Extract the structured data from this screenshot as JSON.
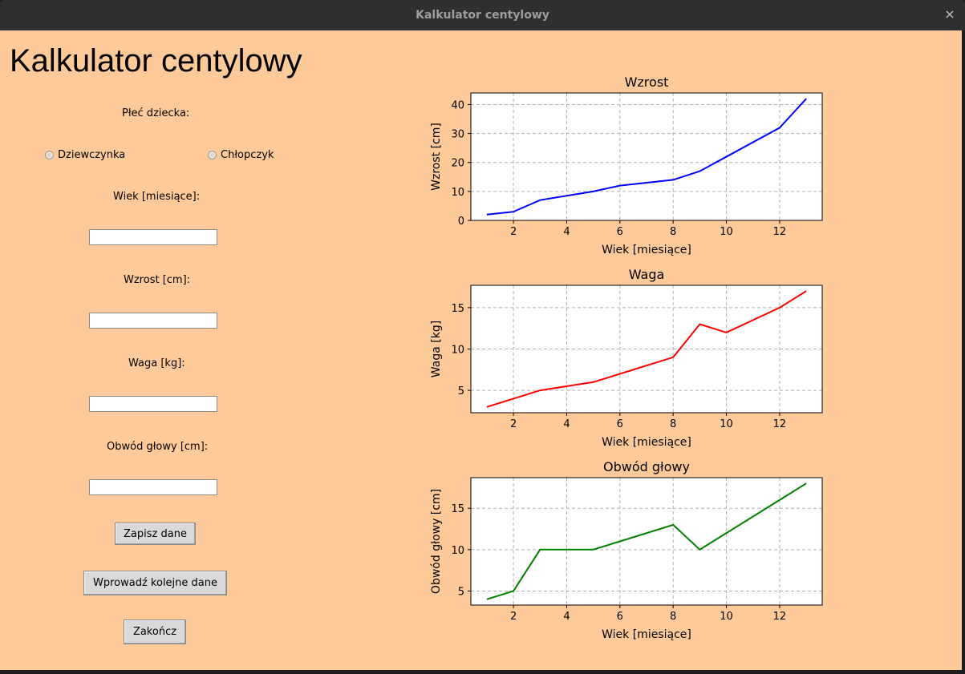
{
  "window": {
    "title": "Kalkulator centylowy",
    "close_glyph": "×"
  },
  "form": {
    "heading": "Kalkulator centylowy",
    "gender_label": "Płeć dziecka:",
    "gender_options": [
      "Dziewczynka",
      "Chłopczyk"
    ],
    "age_label": "Wiek [miesiące]:",
    "age_value": "",
    "height_label": "Wzrost [cm]:",
    "height_value": "",
    "weight_label": "Waga [kg]:",
    "weight_value": "",
    "head_label": "Obwód głowy [cm]:",
    "head_value": "",
    "save_button": "Zapisz dane",
    "next_button": "Wprowadź kolejne dane",
    "quit_button": "Zakończ"
  },
  "colors": {
    "background": "#ffca99",
    "titlebar": "#2f2f2f"
  },
  "chart_data": [
    {
      "type": "line",
      "title": "Wzrost",
      "xlabel": "Wiek [miesiące]",
      "ylabel": "Wzrost [cm]",
      "x": [
        1,
        2,
        3,
        5,
        6,
        8,
        9,
        12,
        13
      ],
      "series": [
        {
          "values": [
            2,
            3,
            7,
            10,
            12,
            14,
            17,
            32,
            42
          ],
          "color": "#0000ff"
        }
      ],
      "xlim": [
        0.4,
        13.6
      ],
      "ylim": [
        0,
        44
      ],
      "xticks": [
        2,
        4,
        6,
        8,
        10,
        12
      ],
      "yticks": [
        0,
        10,
        20,
        30,
        40
      ],
      "grid": true
    },
    {
      "type": "line",
      "title": "Waga",
      "xlabel": "Wiek [miesiące]",
      "ylabel": "Waga [kg]",
      "x": [
        1,
        2,
        3,
        5,
        6,
        8,
        9,
        10,
        12,
        13
      ],
      "series": [
        {
          "values": [
            3,
            4,
            5,
            6,
            7,
            9,
            13,
            12,
            15,
            17
          ],
          "color": "#ff0000"
        }
      ],
      "xlim": [
        0.4,
        13.6
      ],
      "ylim": [
        2.3,
        17.7
      ],
      "xticks": [
        2,
        4,
        6,
        8,
        10,
        12
      ],
      "yticks": [
        5,
        10,
        15
      ],
      "grid": true
    },
    {
      "type": "line",
      "title": "Obwód głowy",
      "xlabel": "Wiek [miesiące]",
      "ylabel": "Obwód głowy [cm]",
      "x": [
        1,
        2,
        3,
        5,
        6,
        8,
        9,
        12,
        13
      ],
      "series": [
        {
          "values": [
            4,
            5,
            10,
            10,
            11,
            13,
            10,
            16,
            18
          ],
          "color": "#008000"
        }
      ],
      "xlim": [
        0.4,
        13.6
      ],
      "ylim": [
        3.3,
        18.7
      ],
      "xticks": [
        2,
        4,
        6,
        8,
        10,
        12
      ],
      "yticks": [
        5,
        10,
        15
      ],
      "grid": true
    }
  ]
}
